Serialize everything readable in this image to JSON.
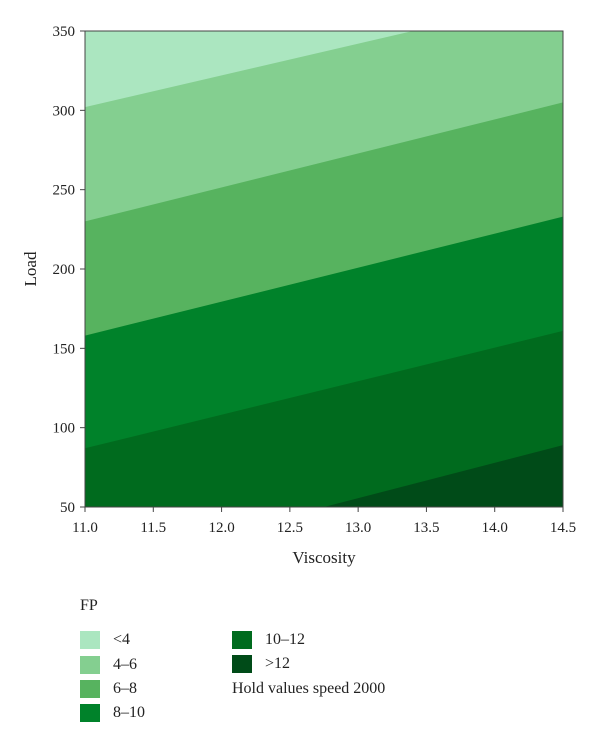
{
  "chart_data": {
    "type": "contour",
    "xlabel": "Viscosity",
    "ylabel": "Load",
    "xlim": [
      11.0,
      14.5
    ],
    "ylim": [
      50,
      350
    ],
    "xticks": [
      "11.0",
      "11.5",
      "12.0",
      "12.5",
      "13.0",
      "13.5",
      "14.0",
      "14.5"
    ],
    "yticks": [
      "50",
      "100",
      "150",
      "200",
      "250",
      "300",
      "350"
    ],
    "legend_title": "FP",
    "levels": [
      {
        "label": "<4",
        "color": "#abe6c0",
        "lower_boundary": [
          [
            11.0,
            302
          ],
          [
            14.5,
            372
          ]
        ]
      },
      {
        "label": "4–6",
        "color": "#84cf90",
        "lower_boundary": [
          [
            11.0,
            230
          ],
          [
            14.5,
            305
          ]
        ]
      },
      {
        "label": "6–8",
        "color": "#57b35f",
        "lower_boundary": [
          [
            11.0,
            158
          ],
          [
            14.5,
            233
          ]
        ]
      },
      {
        "label": "8–10",
        "color": "#00822a",
        "lower_boundary": [
          [
            11.0,
            87
          ],
          [
            14.5,
            161
          ]
        ]
      },
      {
        "label": "10–12",
        "color": "#006b1e",
        "lower_boundary": [
          [
            12.75,
            50
          ],
          [
            14.5,
            89
          ]
        ]
      },
      {
        "label": ">12",
        "color": "#004b18",
        "lower_boundary": null
      }
    ],
    "note": "Hold values speed 2000"
  }
}
